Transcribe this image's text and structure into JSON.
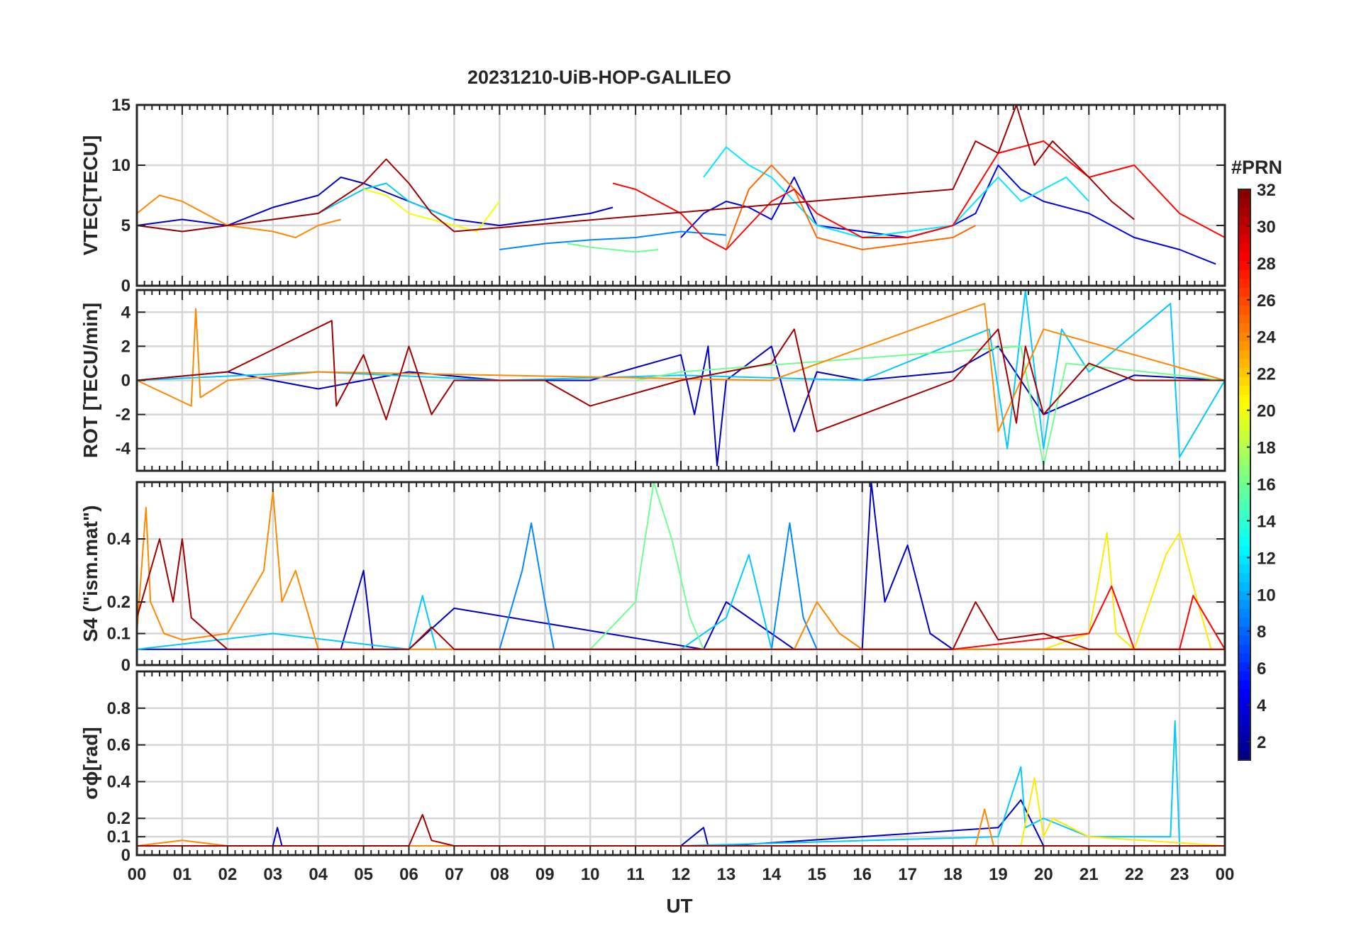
{
  "chart_data": [
    {
      "type": "line",
      "panel": "vtec",
      "title": "20231210-UiB-HOP-GALILEO",
      "ylabel": "VTEC[TECU]",
      "ylim": [
        0,
        15
      ],
      "yticks": [
        0,
        5,
        10,
        15
      ],
      "ytick_labels": [
        "0",
        "5",
        "10",
        "15"
      ],
      "grid": true,
      "series": [
        {
          "name": "PRN 3",
          "prn": 3,
          "x": [
            0,
            1,
            2,
            3,
            4,
            4.5,
            5,
            6,
            7,
            8,
            9,
            10,
            10.5
          ],
          "y": [
            5,
            5.5,
            5,
            6.5,
            7.5,
            9,
            8.5,
            7,
            5.5,
            5,
            5.5,
            6,
            6.5
          ]
        },
        {
          "name": "PRN 4",
          "prn": 4,
          "x": [
            12,
            12.5,
            13,
            13.5,
            14,
            14.5,
            15,
            16,
            17,
            18,
            18.5,
            19,
            19.5,
            20,
            21,
            22,
            23,
            23.8
          ],
          "y": [
            4,
            6,
            7,
            6.5,
            5.5,
            9,
            5,
            4.5,
            4,
            5,
            6,
            10,
            8,
            7,
            6,
            4,
            3,
            1.8
          ]
        },
        {
          "name": "PRN 9",
          "prn": 9,
          "x": [
            8,
            9,
            10,
            11,
            12,
            13
          ],
          "y": [
            3,
            3.5,
            3.8,
            4,
            4.5,
            4.2
          ]
        },
        {
          "name": "PRN 11",
          "prn": 11,
          "x": [
            0,
            1,
            2,
            3,
            4,
            5,
            5.5,
            6,
            7
          ],
          "y": [
            5,
            4.5,
            5,
            5.5,
            6,
            8,
            8.5,
            7,
            5.5
          ]
        },
        {
          "name": "PRN 12",
          "prn": 12,
          "x": [
            12.5,
            13,
            13.5,
            14,
            15,
            16,
            17,
            18,
            19,
            19.5,
            20,
            20.5,
            21
          ],
          "y": [
            9,
            11.5,
            10,
            9,
            5,
            4,
            4.5,
            5,
            9,
            7,
            8,
            9,
            7
          ]
        },
        {
          "name": "PRN 16",
          "prn": 16,
          "x": [
            9.5,
            10,
            10.5,
            11,
            11.5
          ],
          "y": [
            3.5,
            3.2,
            3,
            2.8,
            3
          ]
        },
        {
          "name": "PRN 20",
          "prn": 20,
          "x": [
            5,
            5.5,
            6,
            7,
            7.5,
            8
          ],
          "y": [
            8,
            7.5,
            6,
            5,
            4.5,
            7
          ]
        },
        {
          "name": "PRN 24",
          "prn": 24,
          "x": [
            0,
            0.5,
            1,
            1.5,
            2,
            3,
            3.5,
            4,
            4.5
          ],
          "y": [
            6,
            7.5,
            7,
            6,
            5,
            4.5,
            4,
            5,
            5.5
          ]
        },
        {
          "name": "PRN 25",
          "prn": 25,
          "x": [
            13,
            13.5,
            14,
            14.5,
            15,
            16,
            17,
            18,
            18.5
          ],
          "y": [
            3,
            8,
            10,
            8,
            4,
            3,
            3.5,
            4,
            5
          ]
        },
        {
          "name": "PRN 28",
          "prn": 28,
          "x": [
            10.5,
            11,
            11.5,
            12,
            12.5,
            13,
            13.5,
            14,
            14.5,
            15,
            16,
            17,
            18,
            19,
            20,
            21,
            22,
            23,
            24
          ],
          "y": [
            8.5,
            8,
            7,
            6,
            4,
            3,
            5,
            7,
            8,
            6,
            4,
            4,
            5,
            11,
            12,
            9,
            10,
            6,
            4
          ]
        },
        {
          "name": "PRN 31",
          "prn": 31,
          "x": [
            0,
            1,
            2,
            3,
            4,
            5,
            5.5,
            6,
            6.5,
            7,
            18,
            18.5,
            19,
            19.4,
            19.8,
            20.2,
            21,
            21.5,
            22
          ],
          "y": [
            5,
            4.5,
            5,
            5.5,
            6,
            8.5,
            10.5,
            8.5,
            6,
            4.5,
            8,
            12,
            11,
            15,
            10,
            12,
            9,
            7,
            5.5
          ]
        }
      ]
    },
    {
      "type": "line",
      "panel": "rot",
      "ylabel": "ROT [TECU/min]",
      "ylim": [
        -5.3,
        5.3
      ],
      "yticks": [
        -4,
        -2,
        0,
        2,
        4
      ],
      "ytick_labels": [
        "-4",
        "-2",
        "0",
        "2",
        "4"
      ],
      "grid": true,
      "series": [
        {
          "name": "PRN 3",
          "prn": 3,
          "x": [
            0,
            2,
            4,
            6,
            8,
            10,
            12,
            12.3,
            12.6,
            12.8,
            13,
            14,
            14.5,
            15,
            16,
            18,
            19,
            20,
            22,
            24
          ],
          "y": [
            0,
            0.5,
            -0.5,
            0.5,
            0,
            0,
            1.5,
            -2,
            2,
            -5,
            0,
            2,
            -3,
            0.5,
            0,
            0.5,
            2,
            -2,
            0.3,
            0
          ]
        },
        {
          "name": "PRN 11",
          "prn": 11,
          "x": [
            0,
            4,
            8,
            12,
            16,
            18.8,
            19.2,
            19.6,
            20,
            20.4,
            21,
            22.8,
            23,
            24
          ],
          "y": [
            0,
            0.5,
            0,
            0.3,
            0,
            3,
            -4,
            5.3,
            -4,
            3,
            0.5,
            4.5,
            -4.5,
            0
          ]
        },
        {
          "name": "PRN 16",
          "prn": 16,
          "x": [
            11,
            12,
            19.5,
            20,
            20.5,
            24
          ],
          "y": [
            0,
            0.5,
            2,
            -5,
            1,
            0
          ]
        },
        {
          "name": "PRN 24",
          "prn": 24,
          "x": [
            0,
            1.2,
            1.3,
            1.4,
            2,
            4,
            14,
            18.7,
            19,
            20,
            24
          ],
          "y": [
            0,
            -1.5,
            4.2,
            -1,
            0,
            0.5,
            0,
            4.5,
            -3,
            3,
            0
          ]
        },
        {
          "name": "PRN 31",
          "prn": 31,
          "x": [
            0,
            2,
            4.3,
            4.4,
            5,
            5.5,
            6,
            6.5,
            7,
            9,
            10,
            12,
            14,
            14.5,
            15,
            18,
            19,
            19.4,
            19.6,
            20,
            21,
            22,
            24
          ],
          "y": [
            0,
            0.5,
            3.5,
            -1.5,
            1.5,
            -2.3,
            2,
            -2,
            0,
            0,
            -1.5,
            0,
            1,
            3,
            -3,
            0,
            3,
            -2.5,
            2,
            -2,
            1,
            0,
            0
          ]
        }
      ]
    },
    {
      "type": "line",
      "panel": "s4",
      "ylabel": "S4 (\"ism.mat\")",
      "ylim": [
        0,
        0.58
      ],
      "yticks": [
        0,
        0.1,
        0.2,
        0.4
      ],
      "ytick_labels": [
        "0",
        "0.1",
        "0.2",
        "0.4"
      ],
      "grid": true,
      "series": [
        {
          "name": "PRN 3",
          "prn": 3,
          "x": [
            0,
            4.5,
            5,
            5.2,
            6,
            7,
            12.5,
            13,
            14.5,
            15,
            16,
            16.2,
            16.5,
            17,
            17.5,
            18,
            24
          ],
          "y": [
            0.05,
            0.05,
            0.3,
            0.05,
            0.05,
            0.18,
            0.05,
            0.2,
            0.05,
            0.05,
            0.05,
            0.58,
            0.2,
            0.38,
            0.1,
            0.05,
            0.05
          ]
        },
        {
          "name": "PRN 9",
          "prn": 9,
          "x": [
            8,
            8.5,
            8.7,
            9,
            9.2,
            12,
            14,
            14.4,
            14.7,
            15,
            24
          ],
          "y": [
            0.05,
            0.3,
            0.45,
            0.2,
            0.05,
            0.05,
            0.05,
            0.45,
            0.15,
            0.05,
            0.05
          ]
        },
        {
          "name": "PRN 11",
          "prn": 11,
          "x": [
            0,
            3,
            6,
            6.3,
            6.6,
            12,
            13,
            13.5,
            14,
            24
          ],
          "y": [
            0.05,
            0.1,
            0.05,
            0.22,
            0.05,
            0.05,
            0.15,
            0.35,
            0.05,
            0.05
          ]
        },
        {
          "name": "PRN 16",
          "prn": 16,
          "x": [
            10,
            11,
            11.4,
            11.8,
            12.2,
            12.5,
            13,
            24
          ],
          "y": [
            0.05,
            0.2,
            0.58,
            0.4,
            0.15,
            0.05,
            0.05,
            0.05
          ]
        },
        {
          "name": "PRN 21",
          "prn": 21,
          "x": [
            20,
            21,
            21.4,
            21.6,
            22,
            22.7,
            23,
            23.4,
            23.7,
            24
          ],
          "y": [
            0.05,
            0.1,
            0.42,
            0.1,
            0.05,
            0.35,
            0.42,
            0.2,
            0.05,
            0.05
          ]
        },
        {
          "name": "PRN 24",
          "prn": 24,
          "x": [
            0,
            0.2,
            0.3,
            0.6,
            1,
            2,
            2.8,
            3,
            3.2,
            3.5,
            4,
            14.5,
            15,
            15.5,
            16,
            24
          ],
          "y": [
            0.1,
            0.5,
            0.2,
            0.1,
            0.08,
            0.1,
            0.3,
            0.55,
            0.2,
            0.3,
            0.05,
            0.05,
            0.2,
            0.1,
            0.05,
            0.05
          ]
        },
        {
          "name": "PRN 28",
          "prn": 28,
          "x": [
            18,
            21,
            21.5,
            22,
            23,
            23.3,
            24
          ],
          "y": [
            0.05,
            0.1,
            0.25,
            0.05,
            0.05,
            0.22,
            0.05
          ]
        },
        {
          "name": "PRN 31",
          "prn": 31,
          "x": [
            0,
            0.5,
            0.8,
            1,
            1.2,
            2,
            6,
            6.5,
            7,
            11,
            18,
            18.5,
            19,
            20,
            21,
            24
          ],
          "y": [
            0.15,
            0.4,
            0.2,
            0.4,
            0.15,
            0.05,
            0.05,
            0.12,
            0.05,
            0.05,
            0.05,
            0.2,
            0.08,
            0.1,
            0.05,
            0.05
          ]
        }
      ]
    },
    {
      "type": "line",
      "panel": "sigma_phi",
      "ylabel": "σϕ[rad]",
      "ylim": [
        0,
        1
      ],
      "yticks": [
        0,
        0.1,
        0.2,
        0.4,
        0.6,
        0.8
      ],
      "ytick_labels": [
        "0",
        "0.1",
        "0.2",
        "0.4",
        "0.6",
        "0.8"
      ],
      "grid": true,
      "series": [
        {
          "name": "PRN 3",
          "prn": 3,
          "x": [
            0,
            3,
            3.1,
            3.2,
            12,
            12.5,
            12.6,
            13,
            19,
            19.5,
            20,
            24
          ],
          "y": [
            0.05,
            0.05,
            0.15,
            0.05,
            0.05,
            0.15,
            0.05,
            0.05,
            0.15,
            0.3,
            0.05,
            0.05
          ]
        },
        {
          "name": "PRN 11",
          "prn": 11,
          "x": [
            0,
            12,
            19,
            19.5,
            19.6,
            20,
            21,
            22.8,
            22.9,
            23,
            24
          ],
          "y": [
            0.05,
            0.05,
            0.1,
            0.48,
            0.15,
            0.2,
            0.1,
            0.1,
            0.73,
            0.05,
            0.05
          ]
        },
        {
          "name": "PRN 21",
          "prn": 21,
          "x": [
            19.5,
            19.8,
            20,
            20.2,
            21,
            24
          ],
          "y": [
            0.05,
            0.42,
            0.1,
            0.2,
            0.1,
            0.05
          ]
        },
        {
          "name": "PRN 24",
          "prn": 24,
          "x": [
            0,
            1,
            2,
            18.5,
            18.7,
            18.9,
            19,
            24
          ],
          "y": [
            0.05,
            0.08,
            0.05,
            0.05,
            0.25,
            0.05,
            0.05,
            0.05
          ]
        },
        {
          "name": "PRN 31",
          "prn": 31,
          "x": [
            0,
            6,
            6.3,
            6.5,
            7,
            24
          ],
          "y": [
            0.05,
            0.05,
            0.22,
            0.08,
            0.05,
            0.05
          ]
        }
      ]
    }
  ],
  "xaxis": {
    "xlabel": "UT",
    "xlim": [
      0,
      24
    ],
    "tick_labels": [
      "00",
      "01",
      "02",
      "03",
      "04",
      "05",
      "06",
      "07",
      "08",
      "09",
      "10",
      "11",
      "12",
      "13",
      "14",
      "15",
      "16",
      "17",
      "18",
      "19",
      "20",
      "21",
      "22",
      "23",
      "00"
    ]
  },
  "colorbar": {
    "title": "#PRN",
    "range": [
      1,
      32
    ],
    "ticks": [
      2,
      4,
      6,
      8,
      10,
      12,
      14,
      16,
      18,
      20,
      22,
      24,
      26,
      28,
      30,
      32
    ],
    "tick_labels": [
      "2",
      "4",
      "6",
      "8",
      "10",
      "12",
      "14",
      "16",
      "18",
      "20",
      "22",
      "24",
      "26",
      "28",
      "30",
      "32"
    ],
    "colormap": "jet"
  }
}
